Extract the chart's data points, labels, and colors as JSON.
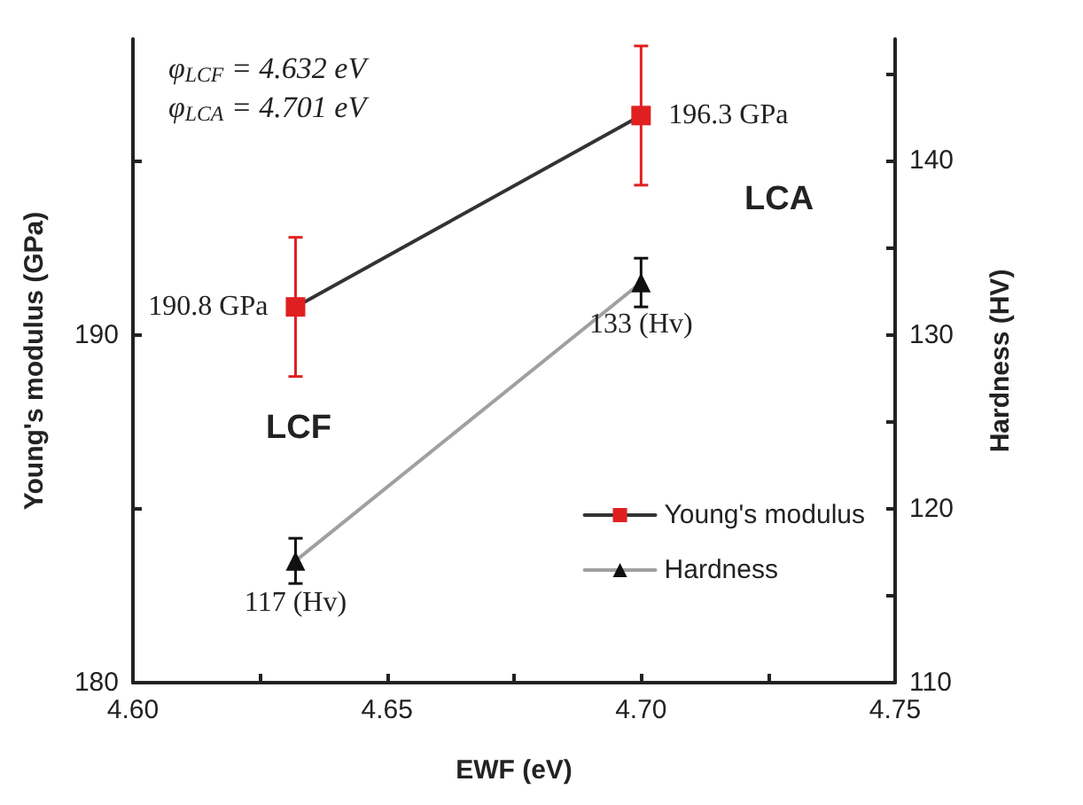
{
  "chart_data": {
    "type": "line",
    "xlabel": "EWF (eV)",
    "ylabel": "Young's modulus (GPa)",
    "y2label": "Hardness (HV)",
    "x": [
      4.632,
      4.7
    ],
    "series": [
      {
        "name": "Young's modulus",
        "color": "#e02020",
        "values": [
          190.8,
          196.3
        ],
        "errors": [
          2,
          2
        ],
        "marker": "square",
        "value_labels": [
          "190.8 GPa",
          "196.3 GPa"
        ]
      },
      {
        "name": "Hardness",
        "color": "#111111",
        "values": [
          117,
          133
        ],
        "errors": [
          1.3,
          1.4
        ],
        "marker": "triangle",
        "axis": "y2",
        "value_labels": [
          "117 (Hv)",
          "133 (Hv)"
        ]
      }
    ],
    "xlim": [
      4.6,
      4.75
    ],
    "xticks": [
      {
        "value": 4.6,
        "label": "4.60"
      },
      {
        "value": 4.625,
        "label": null
      },
      4.65,
      {
        "value": 4.675,
        "label": null
      },
      {
        "value": 4.7,
        "label": "4.70"
      },
      {
        "value": 4.725,
        "label": null
      },
      4.75
    ],
    "ylim": [
      180,
      198.5
    ],
    "yticks": [
      180,
      {
        "value": 185,
        "label": null
      },
      190,
      {
        "value": 195,
        "label": null
      }
    ],
    "y2lim": [
      110,
      147
    ],
    "y2ticks": [
      110,
      {
        "value": 115,
        "label": null
      },
      120,
      {
        "value": 125,
        "label": null
      },
      130,
      {
        "value": 135,
        "label": null
      },
      140,
      {
        "value": 145,
        "label": null
      }
    ],
    "annotations": [
      "φ$_{LCF}$ = 4.632 eV",
      "φ$_{LCA}$ = 4.701 eV",
      "LCF",
      "LCA"
    ],
    "legend": "bottom right",
    "grid": false,
    "line_style": "solid"
  }
}
